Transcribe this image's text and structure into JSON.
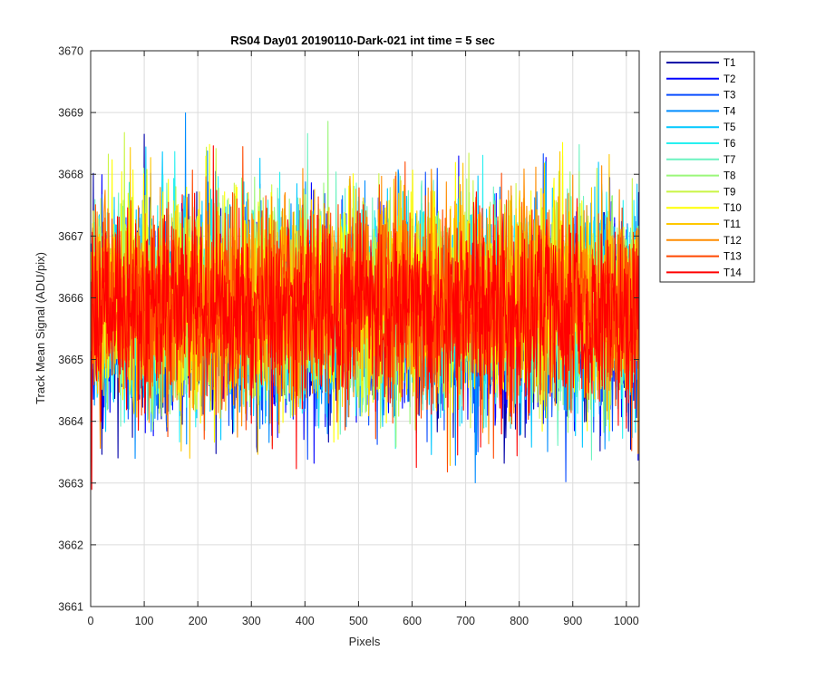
{
  "chart_data": {
    "type": "line",
    "title": "RS04 Day01 20190110-Dark-021 int time = 5 sec",
    "xlabel": "Pixels",
    "ylabel": "Track Mean Signal (ADU/pix)",
    "xlim": [
      0,
      1024
    ],
    "ylim": [
      3661,
      3670
    ],
    "xticks": [
      "0",
      "100",
      "200",
      "300",
      "400",
      "500",
      "600",
      "700",
      "800",
      "900",
      "1000"
    ],
    "yticks": [
      "3661",
      "3662",
      "3663",
      "3664",
      "3665",
      "3666",
      "3667",
      "3668",
      "3669",
      "3670"
    ],
    "grid": true,
    "legend_position": "outside-top-right",
    "n_points": 1024,
    "noise_sigma": 0.8,
    "series": [
      {
        "name": "T1",
        "color": "#0000a8",
        "mean": 3665.6
      },
      {
        "name": "T2",
        "color": "#0000ff",
        "mean": 3665.65
      },
      {
        "name": "T3",
        "color": "#0a4dff",
        "mean": 3665.7
      },
      {
        "name": "T4",
        "color": "#008cff",
        "mean": 3665.75
      },
      {
        "name": "T5",
        "color": "#00c8ff",
        "mean": 3665.8
      },
      {
        "name": "T6",
        "color": "#28f0f0",
        "mean": 3665.85
      },
      {
        "name": "T7",
        "color": "#6cf3c0",
        "mean": 3665.9
      },
      {
        "name": "T8",
        "color": "#9af77a",
        "mean": 3665.95
      },
      {
        "name": "T9",
        "color": "#caf545",
        "mean": 3666.0
      },
      {
        "name": "T10",
        "color": "#ffff00",
        "mean": 3666.0
      },
      {
        "name": "T11",
        "color": "#ffc800",
        "mean": 3665.95
      },
      {
        "name": "T12",
        "color": "#ff8c00",
        "mean": 3665.9
      },
      {
        "name": "T13",
        "color": "#ff4800",
        "mean": 3665.85
      },
      {
        "name": "T14",
        "color": "#ff0000",
        "mean": 3665.8
      }
    ]
  }
}
